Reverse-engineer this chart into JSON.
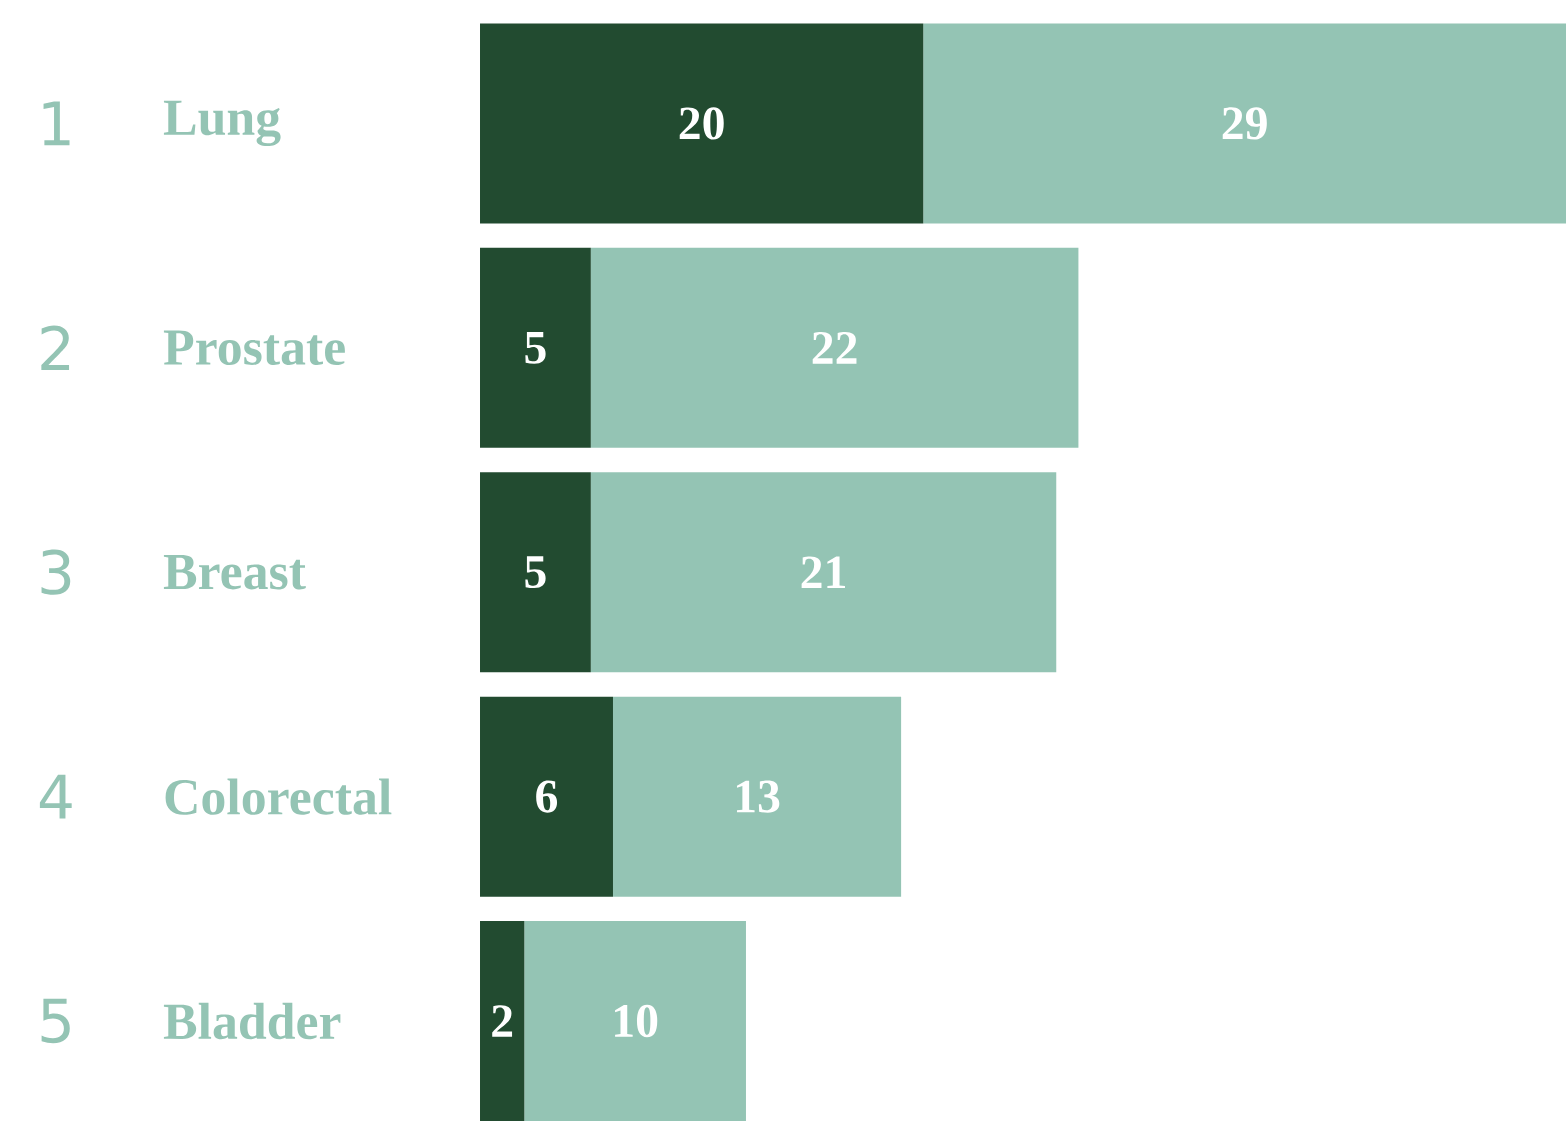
{
  "chart_data": {
    "type": "bar",
    "orientation": "horizontal",
    "stacked": true,
    "data_labels": true,
    "categories": [
      "Lung",
      "Prostate",
      "Breast",
      "Colorectal",
      "Bladder"
    ],
    "annotations": [
      "1",
      "2",
      "3",
      "4",
      "5"
    ],
    "series": [
      {
        "color": "#224b30",
        "values": [
          20,
          5,
          5,
          6,
          2
        ]
      },
      {
        "color": "#94c4b4",
        "values": [
          29,
          22,
          21,
          13,
          10
        ]
      }
    ]
  }
}
